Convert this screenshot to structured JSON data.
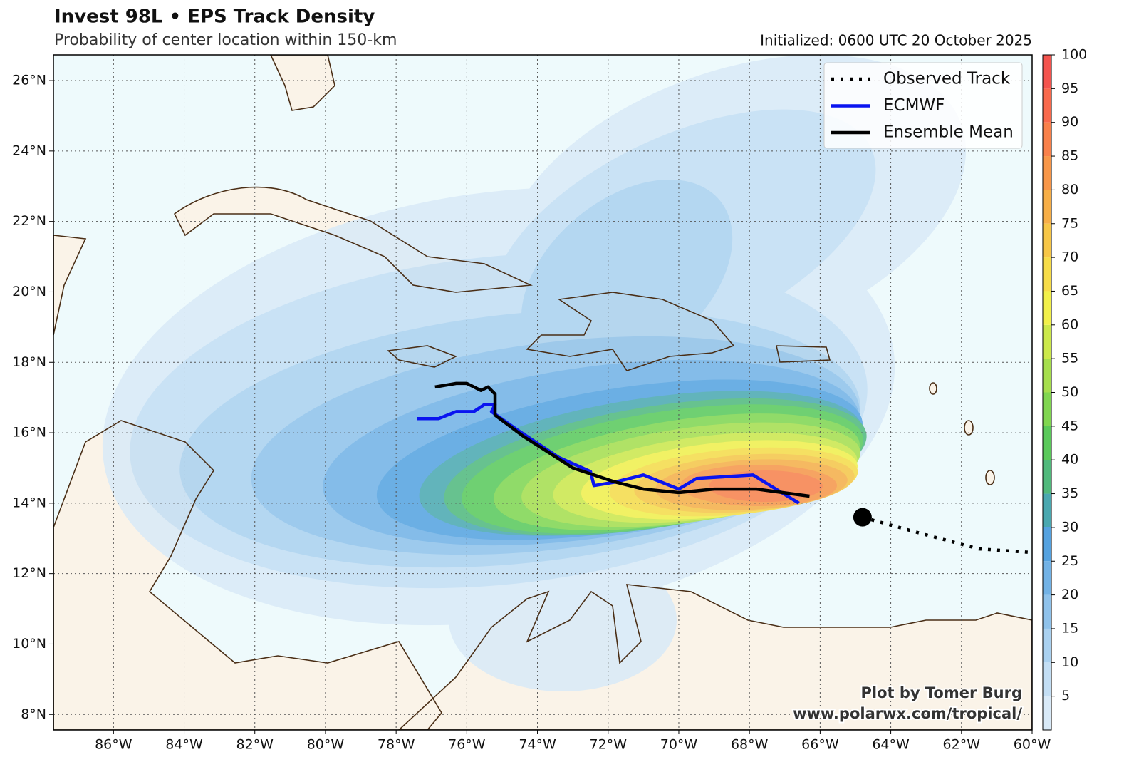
{
  "header": {
    "title": "Invest 98L • EPS Track Density",
    "subtitle": "Probability of center location within 150-km",
    "initialized": "Initialized: 0600 UTC 20 October 2025"
  },
  "map": {
    "xlim": [
      -87.7,
      -60
    ],
    "ylim": [
      7.56,
      26.73
    ],
    "grid": true,
    "xticks": [
      {
        "value": -86,
        "label": "86°W"
      },
      {
        "value": -84,
        "label": "84°W"
      },
      {
        "value": -82,
        "label": "82°W"
      },
      {
        "value": -80,
        "label": "80°W"
      },
      {
        "value": -78,
        "label": "78°W"
      },
      {
        "value": -76,
        "label": "76°W"
      },
      {
        "value": -74,
        "label": "74°W"
      },
      {
        "value": -72,
        "label": "72°W"
      },
      {
        "value": -70,
        "label": "70°W"
      },
      {
        "value": -68,
        "label": "68°W"
      },
      {
        "value": -66,
        "label": "66°W"
      },
      {
        "value": -64,
        "label": "64°W"
      },
      {
        "value": -62,
        "label": "62°W"
      },
      {
        "value": -60,
        "label": "60°W"
      }
    ],
    "yticks": [
      {
        "value": 8,
        "label": "8°N"
      },
      {
        "value": 10,
        "label": "10°N"
      },
      {
        "value": 12,
        "label": "12°N"
      },
      {
        "value": 14,
        "label": "14°N"
      },
      {
        "value": 16,
        "label": "16°N"
      },
      {
        "value": 18,
        "label": "18°N"
      },
      {
        "value": 20,
        "label": "20°N"
      },
      {
        "value": 22,
        "label": "22°N"
      },
      {
        "value": 24,
        "label": "24°N"
      },
      {
        "value": 26,
        "label": "26°N"
      }
    ],
    "legend": "upper right",
    "tracks": [
      {
        "name": "Observed Track",
        "color": "#000000",
        "style": "dotted",
        "lon": [
          -64.8,
          -63.0,
          -61.5,
          -60.0
        ],
        "lat": [
          13.6,
          13.1,
          12.7,
          12.6
        ]
      },
      {
        "name": "ECMWF",
        "color": "#0a14f0",
        "style": "solid",
        "lon": [
          -77.4,
          -76.8,
          -76.3,
          -75.8,
          -75.5,
          -75.2,
          -75.3,
          -74.6,
          -73.4,
          -72.5,
          -72.4,
          -71.8,
          -71.0,
          -70.0,
          -69.5,
          -67.9,
          -66.6
        ],
        "lat": [
          16.4,
          16.4,
          16.6,
          16.6,
          16.8,
          16.8,
          16.6,
          16.1,
          15.3,
          14.9,
          14.5,
          14.6,
          14.8,
          14.4,
          14.7,
          14.8,
          14.0
        ]
      },
      {
        "name": "Ensemble Mean",
        "color": "#000000",
        "style": "solid",
        "lon": [
          -76.9,
          -76.3,
          -76.0,
          -75.6,
          -75.4,
          -75.2,
          -75.2,
          -74.4,
          -73.0,
          -71.8,
          -71.0,
          -70.0,
          -69.0,
          -67.8,
          -66.3
        ],
        "lat": [
          17.3,
          17.4,
          17.4,
          17.2,
          17.3,
          17.1,
          16.5,
          15.9,
          15.0,
          14.6,
          14.4,
          14.3,
          14.4,
          14.4,
          14.2
        ]
      }
    ]
  },
  "colorbar": {
    "lim": [
      0,
      100
    ],
    "ticks": [
      5,
      10,
      15,
      20,
      25,
      30,
      35,
      40,
      45,
      50,
      55,
      60,
      65,
      70,
      75,
      80,
      85,
      90,
      95,
      100
    ],
    "colors": [
      "#d9eaf8",
      "#c3def4",
      "#aad1f0",
      "#8fc2eb",
      "#72b2e6",
      "#55a2e0",
      "#4aa8b0",
      "#50b97c",
      "#5ac95a",
      "#80d650",
      "#a6de4c",
      "#cce84a",
      "#f2f04a",
      "#f7dc48",
      "#f7c647",
      "#f7ae47",
      "#f89648",
      "#f9804a",
      "#f9694c",
      "#f4544e"
    ]
  },
  "credits": [
    "Plot by Tomer Burg",
    "www.polarwx.com/tropical/"
  ]
}
